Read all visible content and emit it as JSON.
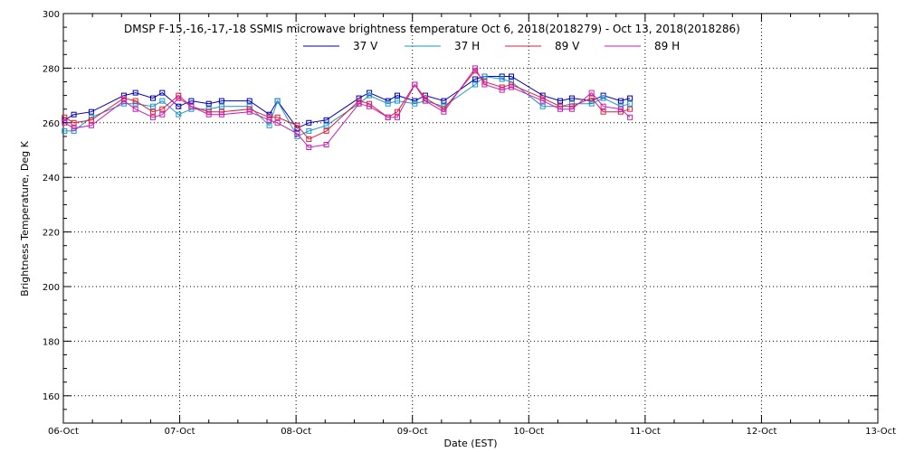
{
  "chart_data": {
    "type": "line",
    "title": "DMSP F-15,-16,-17,-18 SSMIS microwave brightness temperature Oct  6, 2018(2018279) - Oct 13, 2018(2018286)",
    "xlabel": "Date (EST)",
    "ylabel": "Brightness Temperature, Deg K",
    "xlim": [
      0,
      7
    ],
    "ylim": [
      150,
      300
    ],
    "x_ticks": [
      {
        "v": 0,
        "label": "06-Oct"
      },
      {
        "v": 1,
        "label": "07-Oct"
      },
      {
        "v": 2,
        "label": "08-Oct"
      },
      {
        "v": 3,
        "label": "09-Oct"
      },
      {
        "v": 4,
        "label": "10-Oct"
      },
      {
        "v": 5,
        "label": "11-Oct"
      },
      {
        "v": 6,
        "label": "12-Oct"
      },
      {
        "v": 7,
        "label": "13-Oct"
      }
    ],
    "y_ticks": [
      160,
      180,
      200,
      220,
      240,
      260,
      280,
      300
    ],
    "grid": true,
    "legend_position": "top",
    "series": [
      {
        "name": "37 V",
        "color": "#0000b4",
        "points": [
          [
            0.01,
            261
          ],
          [
            0.09,
            263
          ],
          [
            0.24,
            264
          ],
          [
            0.52,
            270
          ],
          [
            0.62,
            271
          ],
          [
            0.77,
            269
          ],
          [
            0.85,
            271
          ],
          [
            0.99,
            266
          ],
          [
            1.1,
            268
          ],
          [
            1.25,
            267
          ],
          [
            1.36,
            268
          ],
          [
            1.6,
            268
          ],
          [
            1.77,
            263
          ],
          [
            1.84,
            268
          ],
          [
            2.01,
            258
          ],
          [
            2.11,
            260
          ],
          [
            2.26,
            261
          ],
          [
            2.54,
            269
          ],
          [
            2.63,
            271
          ],
          [
            2.79,
            268
          ],
          [
            2.87,
            270
          ],
          [
            3.02,
            268
          ],
          [
            3.11,
            270
          ],
          [
            3.27,
            268
          ],
          [
            3.54,
            276
          ],
          [
            3.62,
            277
          ],
          [
            3.77,
            277
          ],
          [
            3.85,
            277
          ],
          [
            4.12,
            270
          ],
          [
            4.27,
            268
          ],
          [
            4.37,
            269
          ],
          [
            4.54,
            268
          ],
          [
            4.64,
            270
          ],
          [
            4.79,
            268
          ],
          [
            4.87,
            269
          ]
        ]
      },
      {
        "name": "37 H",
        "color": "#1e96c8",
        "points": [
          [
            0.01,
            257
          ],
          [
            0.09,
            257
          ],
          [
            0.24,
            262
          ],
          [
            0.52,
            267
          ],
          [
            0.62,
            267
          ],
          [
            0.77,
            266
          ],
          [
            0.85,
            268
          ],
          [
            0.99,
            263
          ],
          [
            1.1,
            265
          ],
          [
            1.25,
            265
          ],
          [
            1.36,
            266
          ],
          [
            1.6,
            266
          ],
          [
            1.77,
            259
          ],
          [
            1.84,
            268
          ],
          [
            2.01,
            255
          ],
          [
            2.11,
            257
          ],
          [
            2.26,
            259
          ],
          [
            2.54,
            267
          ],
          [
            2.63,
            270
          ],
          [
            2.79,
            267
          ],
          [
            2.87,
            268
          ],
          [
            3.02,
            267
          ],
          [
            3.11,
            268
          ],
          [
            3.27,
            266
          ],
          [
            3.54,
            274
          ],
          [
            3.62,
            277
          ],
          [
            3.77,
            276
          ],
          [
            3.85,
            275
          ],
          [
            4.12,
            266
          ],
          [
            4.27,
            266
          ],
          [
            4.37,
            267
          ],
          [
            4.54,
            267
          ],
          [
            4.64,
            269
          ],
          [
            4.79,
            266
          ],
          [
            4.87,
            267
          ]
        ]
      },
      {
        "name": "89 V",
        "color": "#dc1e3c",
        "points": [
          [
            0.01,
            262
          ],
          [
            0.09,
            260
          ],
          [
            0.24,
            261
          ],
          [
            0.52,
            269
          ],
          [
            0.62,
            268
          ],
          [
            0.77,
            264
          ],
          [
            0.85,
            265
          ],
          [
            0.99,
            270
          ],
          [
            1.1,
            266
          ],
          [
            1.25,
            264
          ],
          [
            1.36,
            264
          ],
          [
            1.6,
            265
          ],
          [
            1.77,
            262
          ],
          [
            1.84,
            262
          ],
          [
            2.01,
            259
          ],
          [
            2.11,
            254
          ],
          [
            2.26,
            257
          ],
          [
            2.54,
            268
          ],
          [
            2.63,
            267
          ],
          [
            2.79,
            262
          ],
          [
            2.87,
            264
          ],
          [
            3.02,
            274
          ],
          [
            3.11,
            269
          ],
          [
            3.27,
            265
          ],
          [
            3.54,
            279
          ],
          [
            3.62,
            275
          ],
          [
            3.77,
            273
          ],
          [
            3.85,
            274
          ],
          [
            4.12,
            269
          ],
          [
            4.27,
            266
          ],
          [
            4.37,
            266
          ],
          [
            4.54,
            269
          ],
          [
            4.64,
            264
          ],
          [
            4.79,
            264
          ],
          [
            4.87,
            265
          ]
        ]
      },
      {
        "name": "89 H",
        "color": "#c81eb4",
        "points": [
          [
            0.01,
            260
          ],
          [
            0.09,
            258
          ],
          [
            0.24,
            259
          ],
          [
            0.52,
            268
          ],
          [
            0.62,
            265
          ],
          [
            0.77,
            262
          ],
          [
            0.85,
            263
          ],
          [
            0.99,
            269
          ],
          [
            1.1,
            266
          ],
          [
            1.25,
            263
          ],
          [
            1.36,
            263
          ],
          [
            1.6,
            264
          ],
          [
            1.77,
            261
          ],
          [
            1.84,
            260
          ],
          [
            2.01,
            256
          ],
          [
            2.11,
            251
          ],
          [
            2.26,
            252
          ],
          [
            2.54,
            267
          ],
          [
            2.63,
            266
          ],
          [
            2.79,
            262
          ],
          [
            2.87,
            262
          ],
          [
            3.02,
            274
          ],
          [
            3.11,
            268
          ],
          [
            3.27,
            264
          ],
          [
            3.54,
            280
          ],
          [
            3.62,
            274
          ],
          [
            3.77,
            272
          ],
          [
            3.85,
            273
          ],
          [
            4.12,
            268
          ],
          [
            4.27,
            265
          ],
          [
            4.37,
            265
          ],
          [
            4.54,
            271
          ],
          [
            4.64,
            266
          ],
          [
            4.79,
            265
          ],
          [
            4.87,
            262
          ]
        ]
      }
    ]
  }
}
